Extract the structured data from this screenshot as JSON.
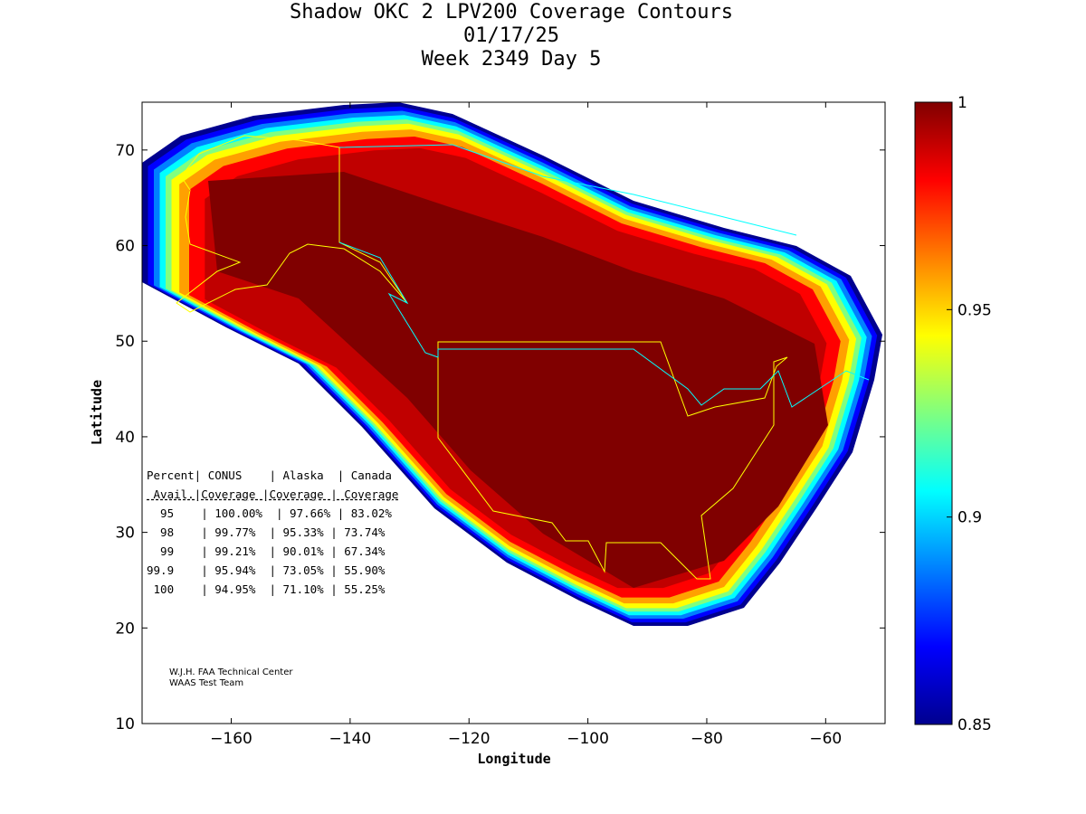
{
  "title": {
    "line1": "Shadow OKC 2 LPV200 Coverage Contours",
    "line2": "01/17/25",
    "line3": "Week 2349 Day 5"
  },
  "chart_data": {
    "type": "heatmap",
    "title": "Shadow OKC 2 LPV200 Coverage Contours",
    "xlabel": "Longitude",
    "ylabel": "Latitude",
    "xlim": [
      -175,
      -50
    ],
    "ylim": [
      10,
      75
    ],
    "xticks": [
      -160,
      -140,
      -120,
      -100,
      -80,
      -60
    ],
    "yticks": [
      10,
      20,
      30,
      40,
      50,
      60,
      70
    ],
    "colorbar": {
      "range": [
        0.85,
        1
      ],
      "ticks": [
        0.85,
        0.9,
        0.95,
        1
      ],
      "tick_labels": [
        "0.85",
        "0.9",
        "0.95",
        "1"
      ],
      "colormap": "jet"
    },
    "grid": false
  },
  "table": {
    "header1": "Percent| CONUS    | Alaska  | Canada",
    "header2": " Avail.|Coverage |Coverage | Coverage",
    "separator": "------------------------------------",
    "rows": [
      "  95    | 100.00%  | 97.66% | 83.02%",
      "  98    | 99.77%  | 95.33% | 73.74%",
      "  99    | 99.21%  | 90.01% | 67.34%",
      "99.9    | 95.94%  | 73.05% | 55.90%",
      " 100    | 94.95%  | 71.10% | 55.25%"
    ]
  },
  "credits": {
    "line1": "W.J.H. FAA Technical Center",
    "line2": "WAAS Test Team"
  }
}
